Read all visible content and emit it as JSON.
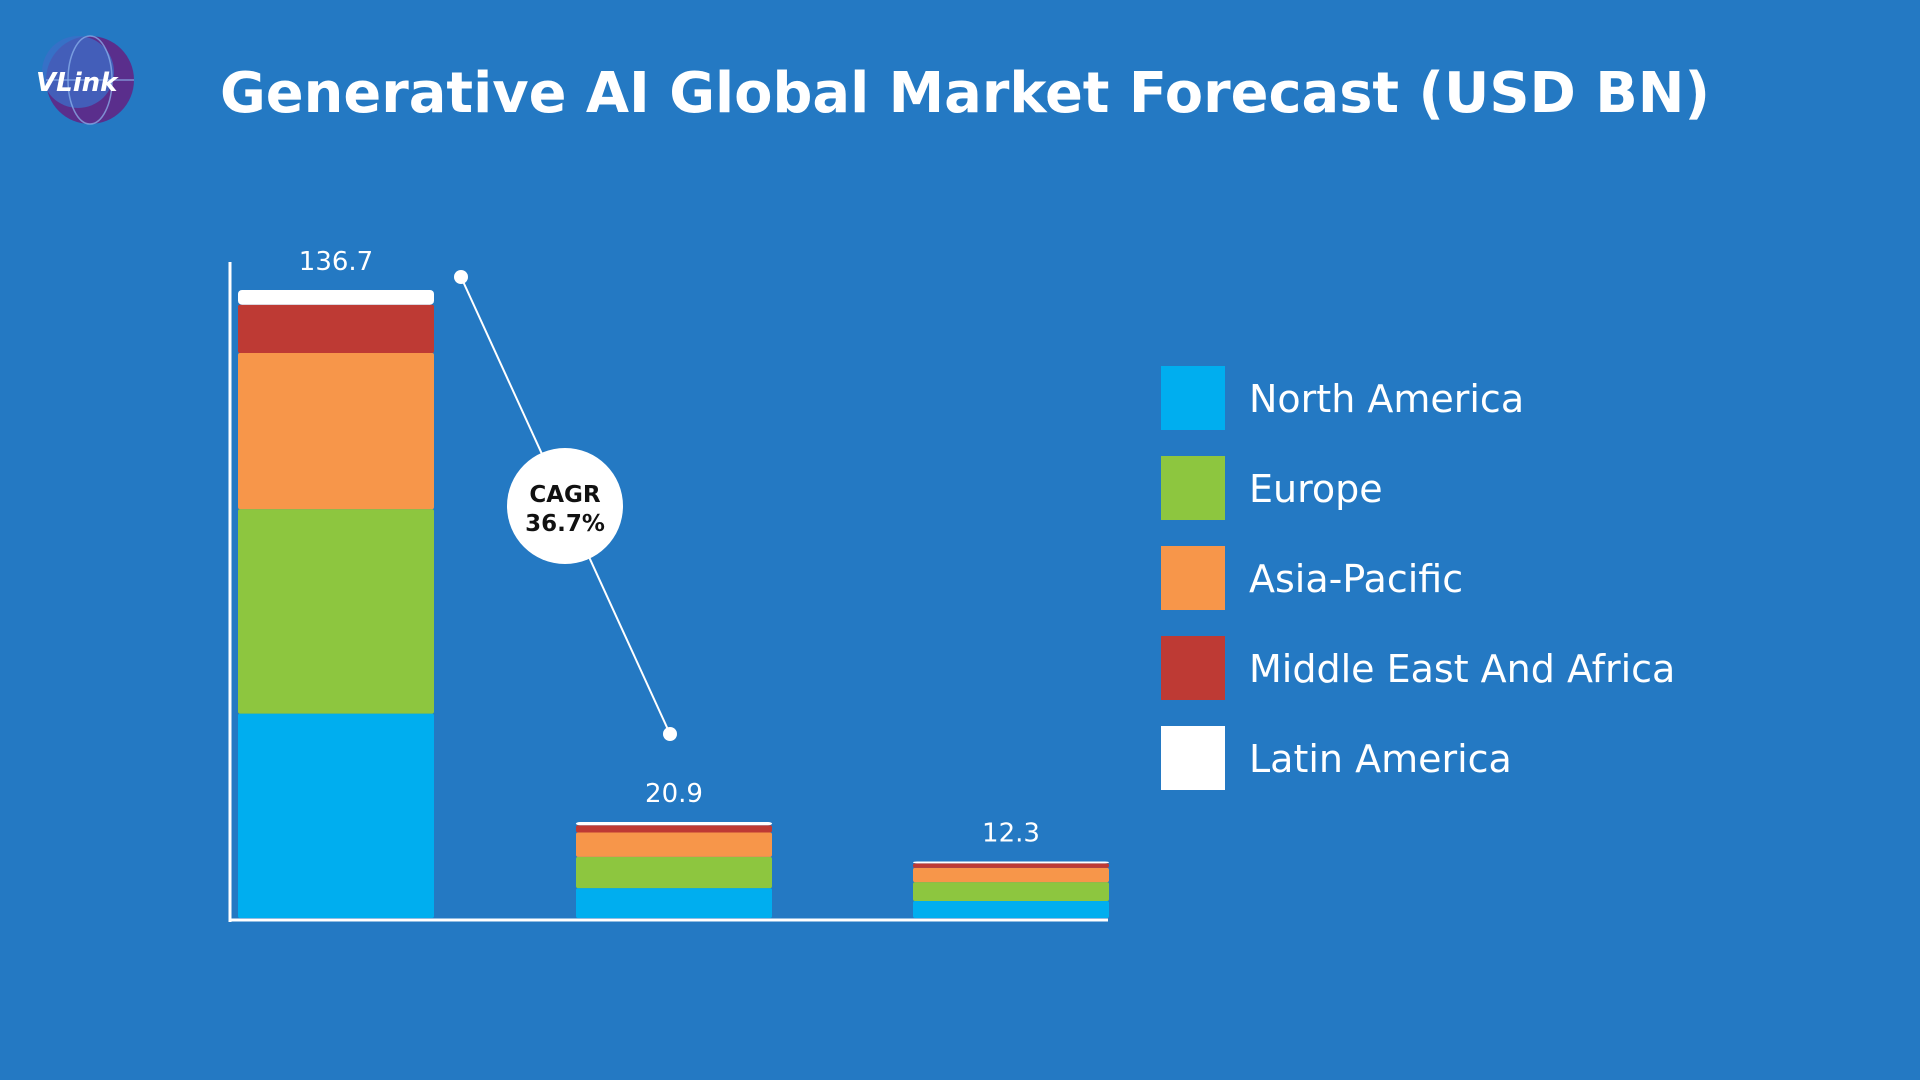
{
  "header": {
    "logo_text": "VLink",
    "title": "Generative AI Global Market Forecast (USD BN)"
  },
  "annotation": {
    "line1": "CAGR",
    "line2": "36.7%"
  },
  "colors": {
    "background": "#2479C3",
    "North America": "#00AEEF",
    "Europe": "#8DC63F",
    "Asia-Pacific": "#F7964A",
    "Middle East And Africa": "#BE3A34",
    "Latin America": "#FFFFFF"
  },
  "chart_data": {
    "type": "bar",
    "stacked": true,
    "title": "Generative AI Global Market Forecast (USD BN)",
    "categories": [
      "",
      "",
      ""
    ],
    "totals": [
      136.7,
      20.9,
      12.3
    ],
    "total_labels": [
      "136.7",
      "20.9",
      "12.3"
    ],
    "series": [
      {
        "name": "North America",
        "values": [
          44.5,
          6.5,
          3.7
        ]
      },
      {
        "name": "Europe",
        "values": [
          44.5,
          6.8,
          4.1
        ]
      },
      {
        "name": "Asia-Pacific",
        "values": [
          34.0,
          5.3,
          3.1
        ]
      },
      {
        "name": "Middle East And Africa",
        "values": [
          10.5,
          1.6,
          1.0
        ]
      },
      {
        "name": "Latin America",
        "values": [
          3.2,
          0.7,
          0.4
        ]
      }
    ],
    "ylim": [
      0,
      136.7
    ],
    "grid": false,
    "legend": "right",
    "xlabel": "",
    "ylabel": ""
  }
}
